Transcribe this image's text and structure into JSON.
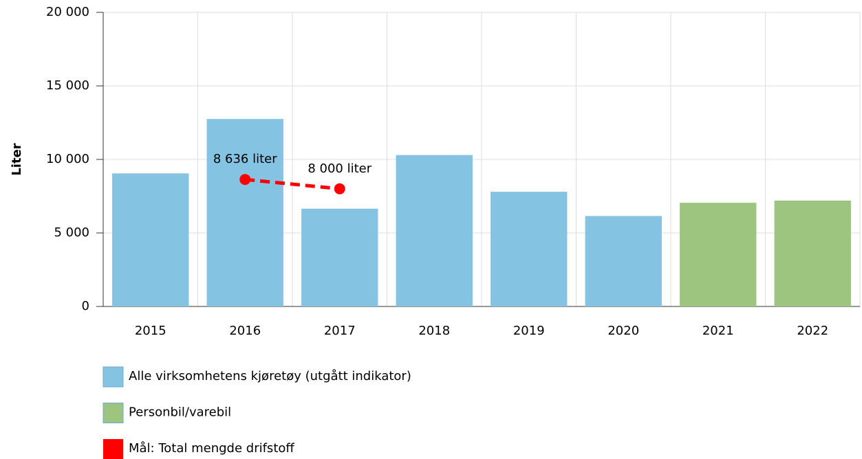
{
  "chart_data": {
    "type": "bar",
    "ylabel": "Liter",
    "categories": [
      "2015",
      "2016",
      "2017",
      "2018",
      "2019",
      "2020",
      "2021",
      "2022"
    ],
    "series": [
      {
        "name": "Alle virksomhetens kjøretøy (utgått indikator)",
        "color": "#85c3e3",
        "values": [
          9050,
          12750,
          6650,
          10300,
          7800,
          6150,
          null,
          null
        ]
      },
      {
        "name": "Personbil/varebil",
        "color": "#9dc57f",
        "values": [
          null,
          null,
          null,
          null,
          null,
          null,
          7050,
          7200
        ]
      },
      {
        "name": "Mål: Total mengde drifstoff",
        "color": "#ff0000",
        "type": "line",
        "values": [
          null,
          8636,
          8000,
          null,
          null,
          null,
          null,
          null
        ],
        "value_labels": [
          null,
          "8 636 liter",
          "8 000 liter",
          null,
          null,
          null,
          null,
          null
        ]
      }
    ],
    "ylim": [
      0,
      20000
    ],
    "yticks": [
      0,
      {
        "value": 5000,
        "label": "5 000"
      },
      {
        "value": 10000,
        "label": "10 000"
      },
      {
        "value": 15000,
        "label": "15 000"
      },
      {
        "value": 20000,
        "label": "20 000"
      }
    ],
    "grid": true,
    "legend": "bottom"
  }
}
